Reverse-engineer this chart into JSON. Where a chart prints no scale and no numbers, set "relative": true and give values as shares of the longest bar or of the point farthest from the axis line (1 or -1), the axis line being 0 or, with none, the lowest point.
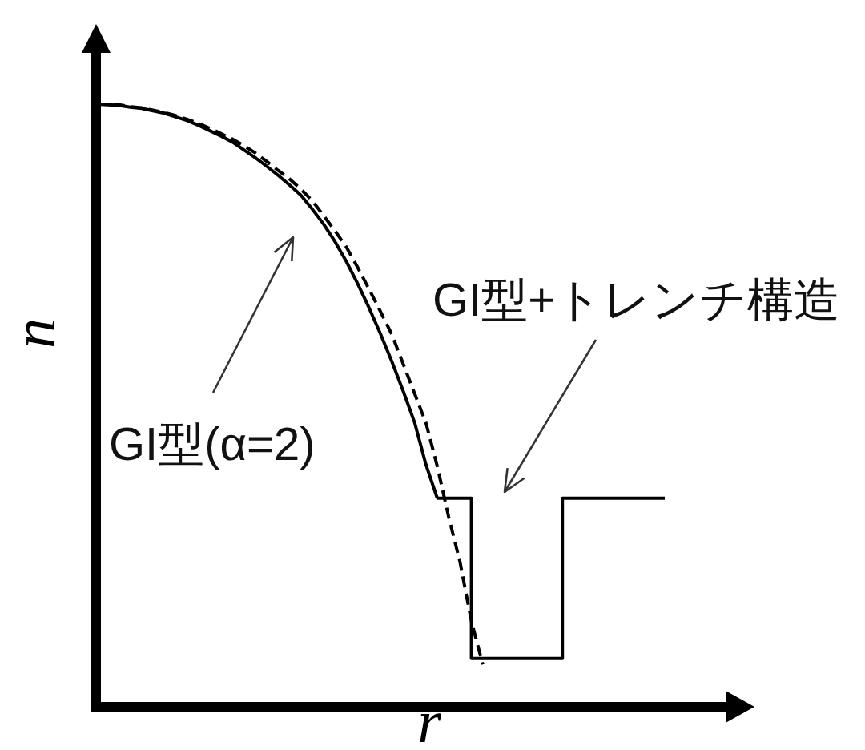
{
  "chart_data": {
    "type": "line",
    "relative": true,
    "xlabel": "r",
    "ylabel": "n",
    "categories": [
      null,
      null,
      null,
      null,
      null,
      null,
      null,
      null,
      null,
      null,
      null,
      null,
      null,
      null,
      null,
      null,
      null,
      null,
      null,
      null,
      null,
      null,
      null,
      null,
      null,
      null,
      null,
      null,
      null,
      null,
      null,
      null,
      null,
      null,
      null,
      null,
      null,
      null,
      null,
      null,
      null,
      null,
      null,
      null,
      null,
      null,
      null,
      null,
      null,
      null,
      null
    ],
    "series": [
      {
        "color": "#000000",
        "line_style": "solid",
        "values": [
          1.0,
          0.999,
          0.998,
          0.995,
          0.993,
          0.989,
          0.985,
          0.979,
          0.973,
          0.965,
          0.956,
          0.947,
          0.937,
          0.924,
          0.911,
          0.897,
          0.882,
          0.866,
          0.849,
          0.826,
          0.801,
          0.772,
          0.739,
          0.702,
          0.662,
          0.619,
          0.573,
          0.524,
          0.472,
          0.402,
          0.346,
          null,
          null,
          null,
          null,
          null,
          null,
          null,
          null,
          null,
          null,
          null,
          null,
          null,
          null,
          null,
          null,
          null,
          null,
          null,
          null
        ]
      },
      {
        "type": "step",
        "color": "#000000",
        "line_style": "solid",
        "values": [
          null,
          null,
          null,
          null,
          null,
          null,
          null,
          null,
          null,
          null,
          null,
          null,
          null,
          null,
          null,
          null,
          null,
          null,
          null,
          null,
          null,
          null,
          null,
          null,
          null,
          null,
          null,
          null,
          null,
          null,
          0.346,
          0.346,
          0.346,
          0.08,
          0.08,
          0.08,
          0.08,
          0.08,
          0.08,
          0.08,
          0.08,
          0.346,
          0.346,
          0.346,
          0.346,
          0.346,
          0.346,
          0.346,
          0.346,
          0.346,
          0.346
        ]
      },
      {
        "color": "#000000",
        "line_style": "dashed",
        "values": [
          1.0,
          1.0,
          0.999,
          0.996,
          0.994,
          0.99,
          0.986,
          0.981,
          0.975,
          0.968,
          0.96,
          0.951,
          0.942,
          0.931,
          0.919,
          0.905,
          0.89,
          0.876,
          0.859,
          0.84,
          0.815,
          0.79,
          0.763,
          0.729,
          0.693,
          0.656,
          0.618,
          0.569,
          0.52,
          0.471,
          0.399,
          0.315,
          0.24,
          0.142,
          0.07,
          null,
          null,
          null,
          null,
          null,
          null,
          null,
          null,
          null,
          null,
          null,
          null,
          null,
          null,
          null,
          null
        ]
      }
    ],
    "annotations": [
      "GI型(α=2)",
      "GI型+トレンチ構造"
    ]
  }
}
